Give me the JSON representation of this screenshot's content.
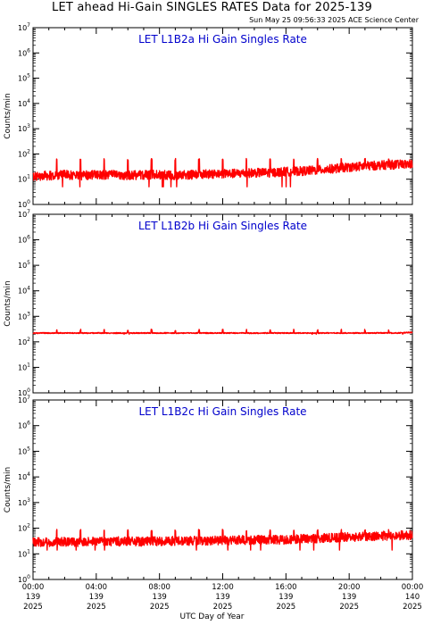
{
  "header": {
    "title": "LET ahead Hi-Gain SINGLES RATES Data for 2025-139",
    "timestamp": "Sun May 25 09:56:33 2025 ACE Science Center",
    "xlabel": "UTC Day of Year"
  },
  "colors": {
    "series": "#ff0000",
    "panel_title": "#0000cc",
    "axes": "#000000"
  },
  "x_ticks": [
    {
      "time": "00:00",
      "doy": "139",
      "year": "2025"
    },
    {
      "time": "04:00",
      "doy": "139",
      "year": "2025"
    },
    {
      "time": "08:00",
      "doy": "139",
      "year": "2025"
    },
    {
      "time": "12:00",
      "doy": "139",
      "year": "2025"
    },
    {
      "time": "16:00",
      "doy": "139",
      "year": "2025"
    },
    {
      "time": "20:00",
      "doy": "139",
      "year": "2025"
    },
    {
      "time": "00:00",
      "doy": "140",
      "year": "2025"
    }
  ],
  "chart_data": [
    {
      "type": "line",
      "title": "LET L1B2a Hi Gain Singles Rate",
      "ylabel": "Counts/min",
      "yscale": "log",
      "ylim": [
        1,
        10000000
      ],
      "xlim_hours": [
        0,
        24
      ],
      "x_hours": [
        0,
        1,
        2,
        3,
        4,
        5,
        6,
        7,
        8,
        9,
        10,
        11,
        12,
        13,
        14,
        15,
        16,
        17,
        18,
        19,
        20,
        21,
        22,
        23,
        24
      ],
      "series": [
        {
          "name": "",
          "color": "#ff0000",
          "values": [
            13,
            14,
            15,
            14,
            15,
            15,
            14,
            15,
            15,
            14,
            15,
            16,
            16,
            17,
            18,
            18,
            20,
            21,
            23,
            26,
            30,
            33,
            36,
            38,
            40
          ]
        }
      ],
      "spikes_hours": [
        1.5,
        3.0,
        4.5,
        6.0,
        7.5,
        9.0,
        10.5,
        12.0,
        13.5,
        15.0,
        16.5,
        18.0,
        19.5,
        21.0,
        22.5
      ],
      "spike_value": 55,
      "dip_value": 5
    },
    {
      "type": "line",
      "title": "LET L1B2b Hi Gain Singles Rate",
      "ylabel": "Counts/min",
      "yscale": "log",
      "ylim": [
        1,
        10000000
      ],
      "xlim_hours": [
        0,
        24
      ],
      "x_hours": [
        0,
        1,
        2,
        3,
        4,
        5,
        6,
        7,
        8,
        9,
        10,
        11,
        12,
        13,
        14,
        15,
        16,
        17,
        18,
        19,
        20,
        21,
        22,
        23,
        24
      ],
      "series": [
        {
          "name": "",
          "color": "#ff0000",
          "values": [
            220,
            222,
            221,
            220,
            222,
            221,
            220,
            221,
            222,
            221,
            220,
            221,
            222,
            221,
            220,
            222,
            221,
            220,
            221,
            222,
            221,
            220,
            222,
            223,
            235
          ]
        }
      ],
      "spikes_hours": [
        1.5,
        3.0,
        4.5,
        6.0,
        7.5,
        9.0,
        10.5,
        12.0,
        13.5,
        15.0,
        16.5,
        18.0,
        19.5,
        21.0,
        22.5
      ],
      "spike_value": 260,
      "dip_value": 200
    },
    {
      "type": "line",
      "title": "LET L1B2c Hi Gain Singles Rate",
      "ylabel": "Counts/min",
      "yscale": "log",
      "ylim": [
        1,
        10000000
      ],
      "xlim_hours": [
        0,
        24
      ],
      "x_hours": [
        0,
        1,
        2,
        3,
        4,
        5,
        6,
        7,
        8,
        9,
        10,
        11,
        12,
        13,
        14,
        15,
        16,
        17,
        18,
        19,
        20,
        21,
        22,
        23,
        24
      ],
      "series": [
        {
          "name": "",
          "color": "#ff0000",
          "values": [
            28,
            29,
            30,
            29,
            30,
            31,
            30,
            30,
            31,
            32,
            32,
            33,
            33,
            34,
            35,
            35,
            36,
            38,
            40,
            42,
            45,
            48,
            50,
            52,
            55
          ]
        }
      ],
      "spikes_hours": [
        1.5,
        3.0,
        4.5,
        6.0,
        7.5,
        9.0,
        10.5,
        12.0,
        13.5,
        15.0,
        16.5,
        18.0,
        19.5,
        21.0,
        22.5
      ],
      "spike_value": 75,
      "dip_value": 14
    }
  ]
}
